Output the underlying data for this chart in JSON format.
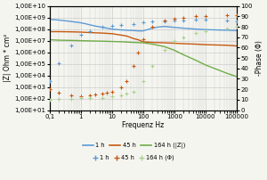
{
  "xlabel": "Frequenz Hz",
  "ylabel_left": "|Z| Ohm * cm²",
  "ylabel_right": "-Phase (Φ)",
  "xlim": [
    0.1,
    100000
  ],
  "ylim_left": [
    10.0,
    10000000000.0
  ],
  "ylim_right": [
    0,
    100
  ],
  "right_yticks": [
    0,
    10,
    20,
    30,
    40,
    50,
    60,
    70,
    80,
    90,
    100
  ],
  "iz_1h_x": [
    0.1,
    0.2,
    0.5,
    1.0,
    1.5,
    2,
    3,
    5,
    7,
    10,
    15,
    20,
    30,
    50,
    70,
    100,
    200,
    300,
    500,
    1000,
    2000,
    5000,
    10000,
    50000,
    100000
  ],
  "iz_1h_y": [
    700000000.0,
    600000000.0,
    450000000.0,
    350000000.0,
    280000000.0,
    230000000.0,
    180000000.0,
    140000000.0,
    120000000.0,
    100000000.0,
    90000000.0,
    85000000.0,
    80000000.0,
    75000000.0,
    70000000.0,
    70000000.0,
    120000000.0,
    150000000.0,
    170000000.0,
    140000000.0,
    120000000.0,
    100000000.0,
    90000000.0,
    80000000.0,
    75000000.0
  ],
  "iz_1h_color": "#5b9bd5",
  "iz_45h_x": [
    0.1,
    0.2,
    0.5,
    1.0,
    2,
    5,
    10,
    20,
    30,
    50,
    70,
    100,
    200,
    500,
    1000,
    2000,
    5000,
    10000,
    50000,
    100000
  ],
  "iz_45h_y": [
    60000000.0,
    60000000.0,
    58000000.0,
    55000000.0,
    50000000.0,
    45000000.0,
    40000000.0,
    30000000.0,
    25000000.0,
    15000000.0,
    12000000.0,
    8000000.0,
    7000000.0,
    6500000.0,
    6000000.0,
    5500000.0,
    5000000.0,
    4500000.0,
    4000000.0,
    3500000.0
  ],
  "iz_45h_color": "#c55a11",
  "iz_164h_x": [
    0.1,
    0.2,
    0.5,
    1.0,
    2,
    5,
    10,
    20,
    50,
    100,
    200,
    500,
    1000,
    2000,
    5000,
    10000,
    50000,
    100000
  ],
  "iz_164h_y": [
    12000000.0,
    11000000.0,
    10500000.0,
    10000000.0,
    9500000.0,
    9000000.0,
    8500000.0,
    8000000.0,
    7000000.0,
    6500000.0,
    5000000.0,
    3000000.0,
    1500000.0,
    600000.0,
    200000.0,
    80000.0,
    15000.0,
    8000.0
  ],
  "iz_164h_color": "#70ad47",
  "ph_1h_x": [
    0.1,
    0.2,
    0.5,
    1.0,
    2,
    5,
    10,
    20,
    50,
    100,
    200,
    500,
    1000,
    2000,
    5000,
    10000,
    50000,
    100000
  ],
  "ph_1h_y": [
    28,
    45,
    62,
    72,
    76,
    80,
    81,
    82,
    83,
    84,
    85,
    85,
    86,
    86,
    87,
    87,
    86,
    85
  ],
  "ph_1h_color": "#5b9bd5",
  "ph_45h_x": [
    0.1,
    0.2,
    0.5,
    1.0,
    2,
    3,
    5,
    7,
    10,
    20,
    30,
    50,
    70,
    100,
    200,
    500,
    1000,
    2000,
    5000,
    10000,
    50000,
    100000
  ],
  "ph_45h_y": [
    20,
    17,
    14,
    13,
    14,
    15,
    16,
    17,
    18,
    22,
    28,
    42,
    55,
    68,
    80,
    86,
    88,
    89,
    90,
    90,
    91,
    91
  ],
  "ph_45h_color": "#c55a11",
  "ph_164h_x": [
    0.1,
    0.2,
    0.5,
    1.0,
    2,
    5,
    10,
    20,
    30,
    50,
    100,
    200,
    500,
    1000,
    2000,
    5000,
    10000,
    50000,
    100000
  ],
  "ph_164h_y": [
    10,
    11,
    11,
    12,
    12,
    12,
    13,
    14,
    16,
    18,
    28,
    42,
    58,
    66,
    70,
    74,
    76,
    78,
    80
  ],
  "ph_164h_color": "#a9d18e",
  "bg_color": "#f5f5f0",
  "grid_color": "#cccccc",
  "legend_iz": [
    "1 h",
    "45 h",
    "164 h (|Z|)"
  ],
  "legend_ph": [
    "1 h",
    "45 h",
    "164 h (Φ)"
  ]
}
